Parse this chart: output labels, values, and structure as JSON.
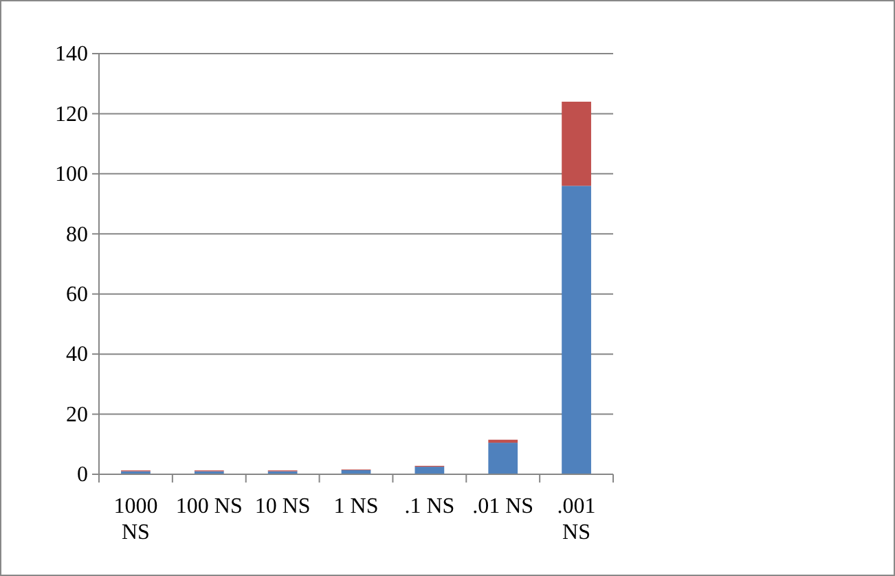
{
  "chart_data": {
    "type": "bar",
    "stacked": true,
    "categories": [
      "1000 NS",
      "100 NS",
      "10 NS",
      "1 NS",
      ".1 NS",
      ".01 NS",
      ".001 NS"
    ],
    "series": [
      {
        "color": "#4f81bd",
        "values": [
          1.0,
          1.0,
          1.0,
          1.4,
          2.5,
          10.5,
          96
        ]
      },
      {
        "color": "#c0504d",
        "values": [
          0.3,
          0.3,
          0.3,
          0.2,
          0.3,
          1.0,
          28
        ]
      }
    ],
    "ylim": [
      0,
      140
    ],
    "yticks": [
      0,
      20,
      40,
      60,
      80,
      100,
      120,
      140
    ],
    "grid": "y"
  }
}
